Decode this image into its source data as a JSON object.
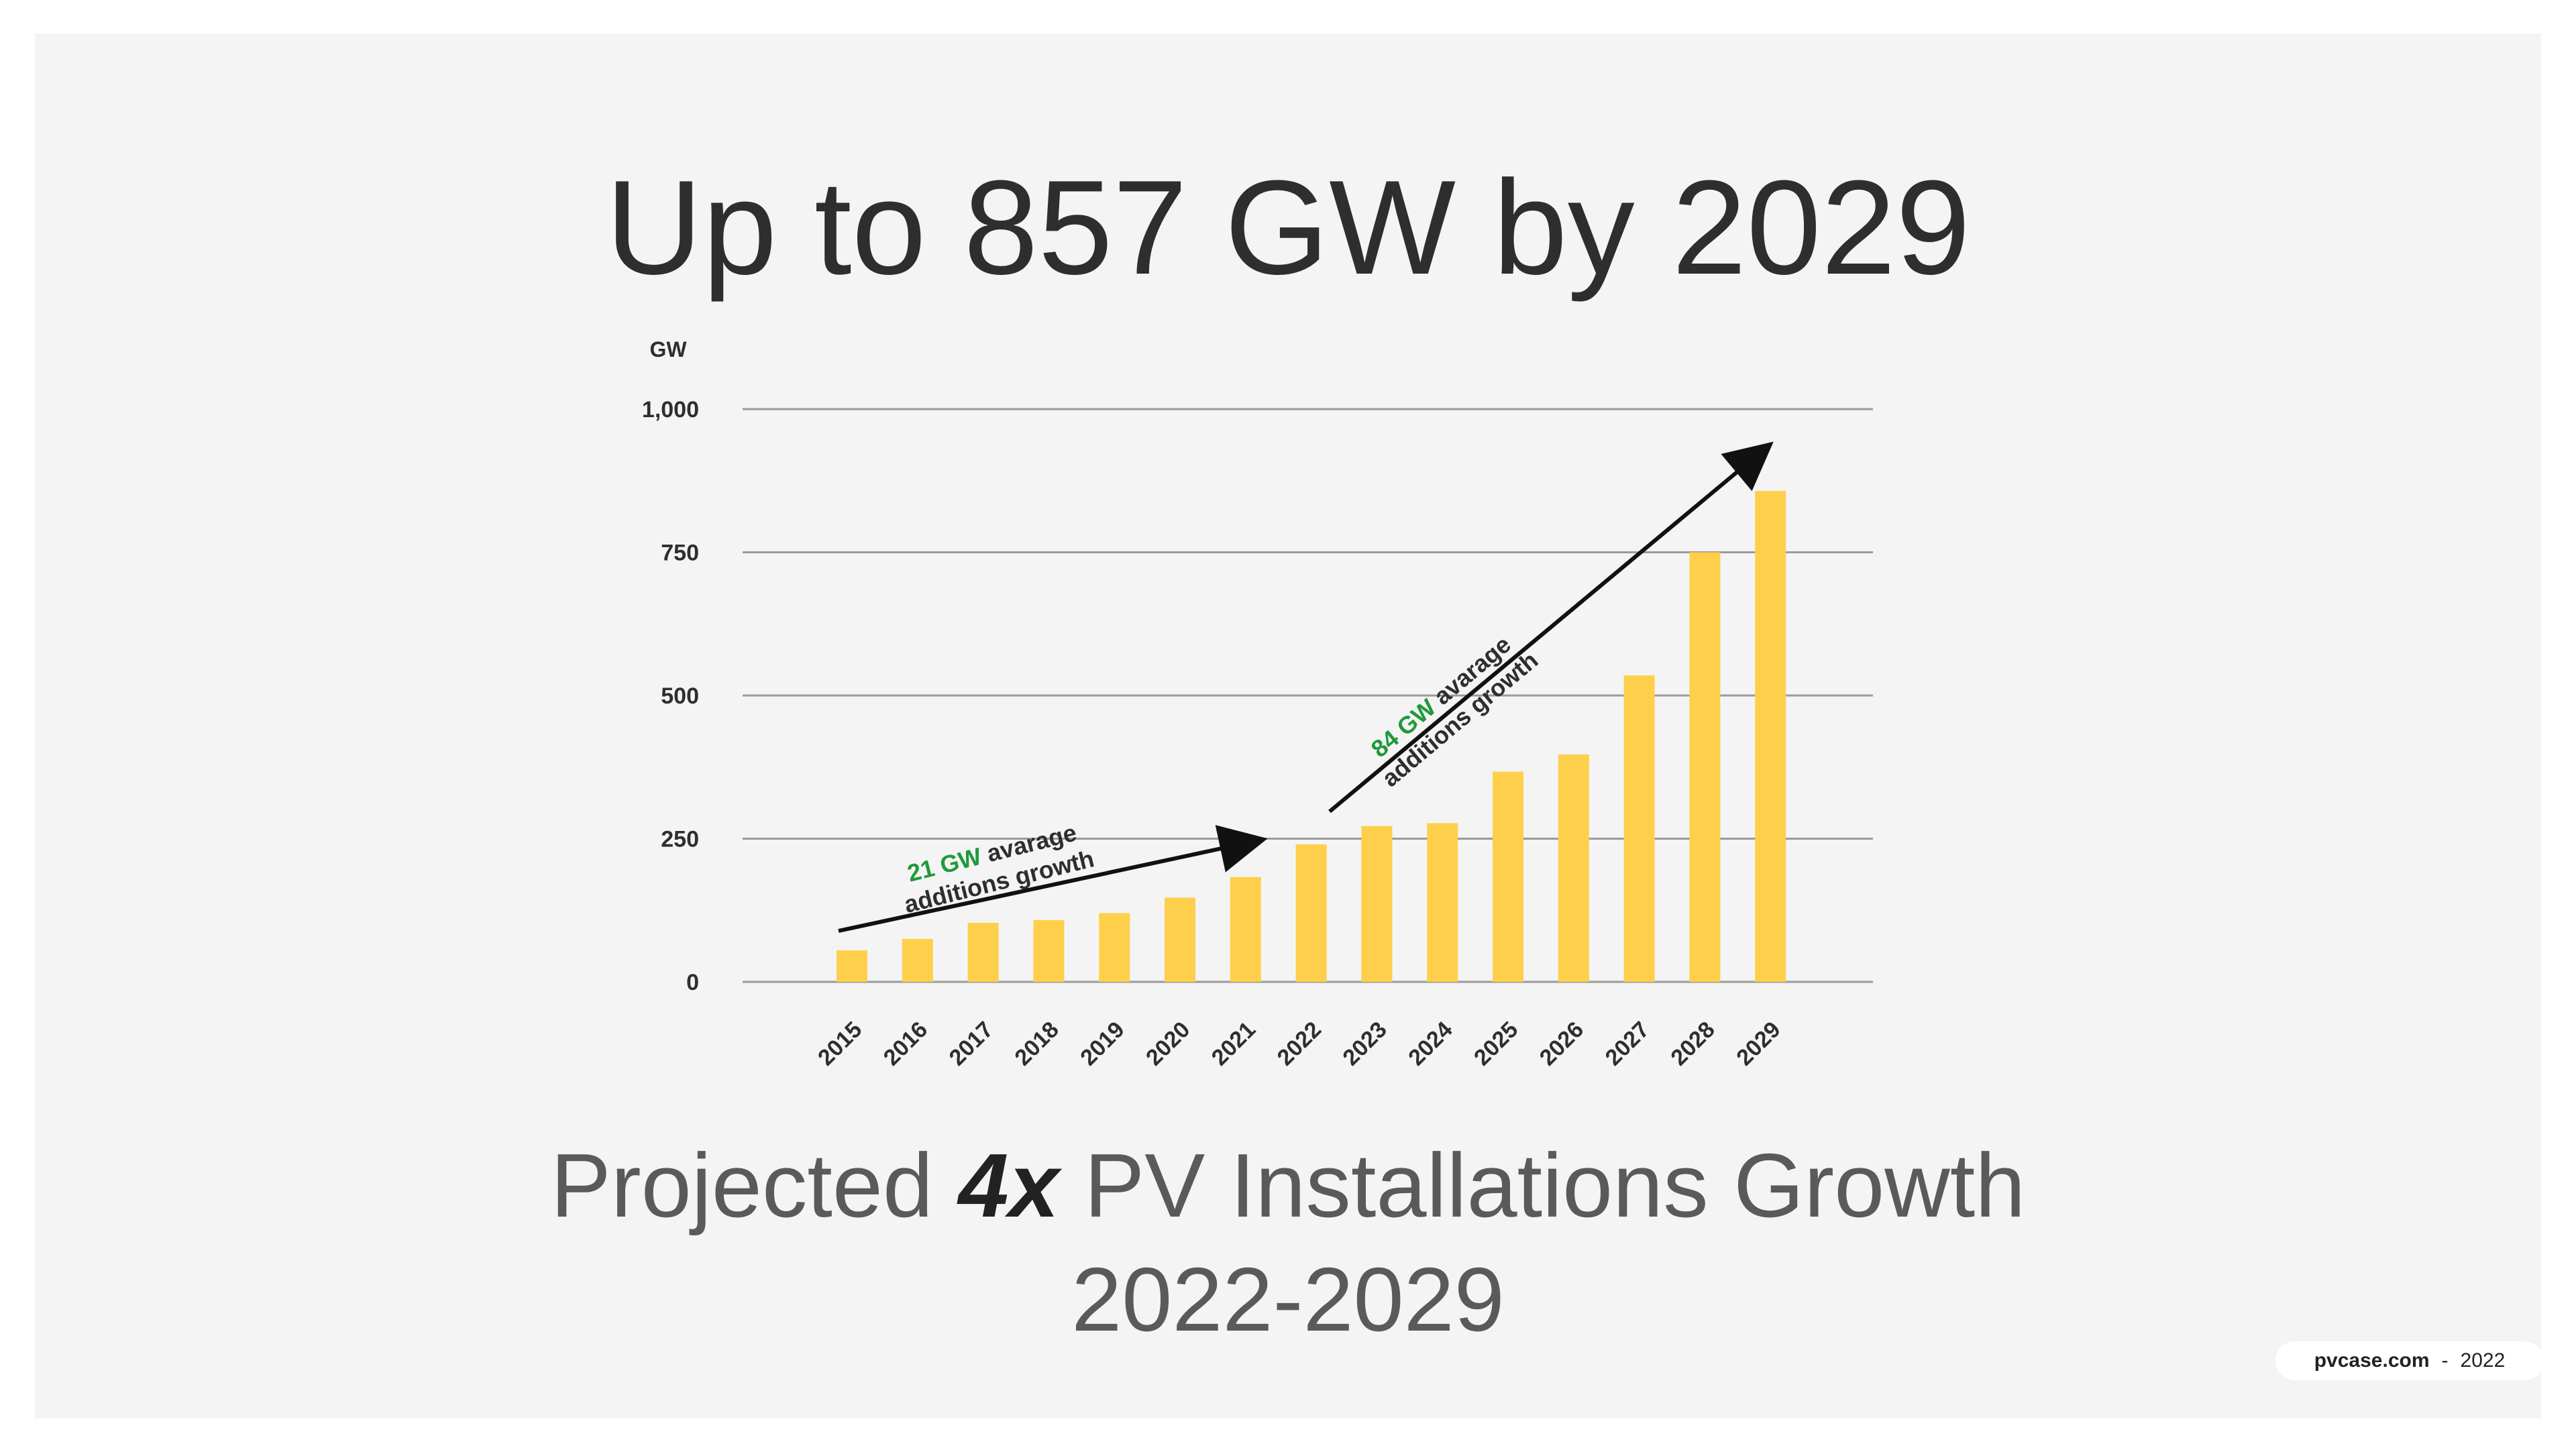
{
  "headline": {
    "prefix": "Up to ",
    "highlight": "857 GW",
    "suffix": " by 2029"
  },
  "subtitle": {
    "line1_pre": "Projected ",
    "line1_em": "4x",
    "line1_post": " PV Installations Growth",
    "line2": "2022-2029"
  },
  "footer": {
    "site": "pvcase.com",
    "sep": "-",
    "year": "2022"
  },
  "colors": {
    "bar": "#fecf4a",
    "grid": "#9a9a9a",
    "arrow": "#111111",
    "accent_green": "#1f9a3a",
    "text": "#2e2e2e"
  },
  "chart_data": {
    "type": "bar",
    "unit_label": "GW",
    "categories": [
      "2015",
      "2016",
      "2017",
      "2018",
      "2019",
      "2020",
      "2021",
      "2022",
      "2023",
      "2024",
      "2025",
      "2026",
      "2027",
      "2028",
      "2029"
    ],
    "values": [
      55,
      75,
      103,
      108,
      120,
      147,
      183,
      240,
      272,
      277,
      367,
      397,
      535,
      750,
      857
    ],
    "ylim": [
      0,
      1000
    ],
    "yticks": [
      0,
      250,
      500,
      750,
      1000
    ],
    "ytick_labels": [
      "0",
      "250",
      "500",
      "750",
      "1,000"
    ],
    "grid": true,
    "annotations": [
      {
        "highlight": "21 GW",
        "text1": " avarage",
        "text2": "additions growth",
        "from": "2015",
        "to": "2021"
      },
      {
        "highlight": "84 GW",
        "text1": " avarage",
        "text2": "additions growth",
        "from": "2022",
        "to": "2029"
      }
    ]
  }
}
